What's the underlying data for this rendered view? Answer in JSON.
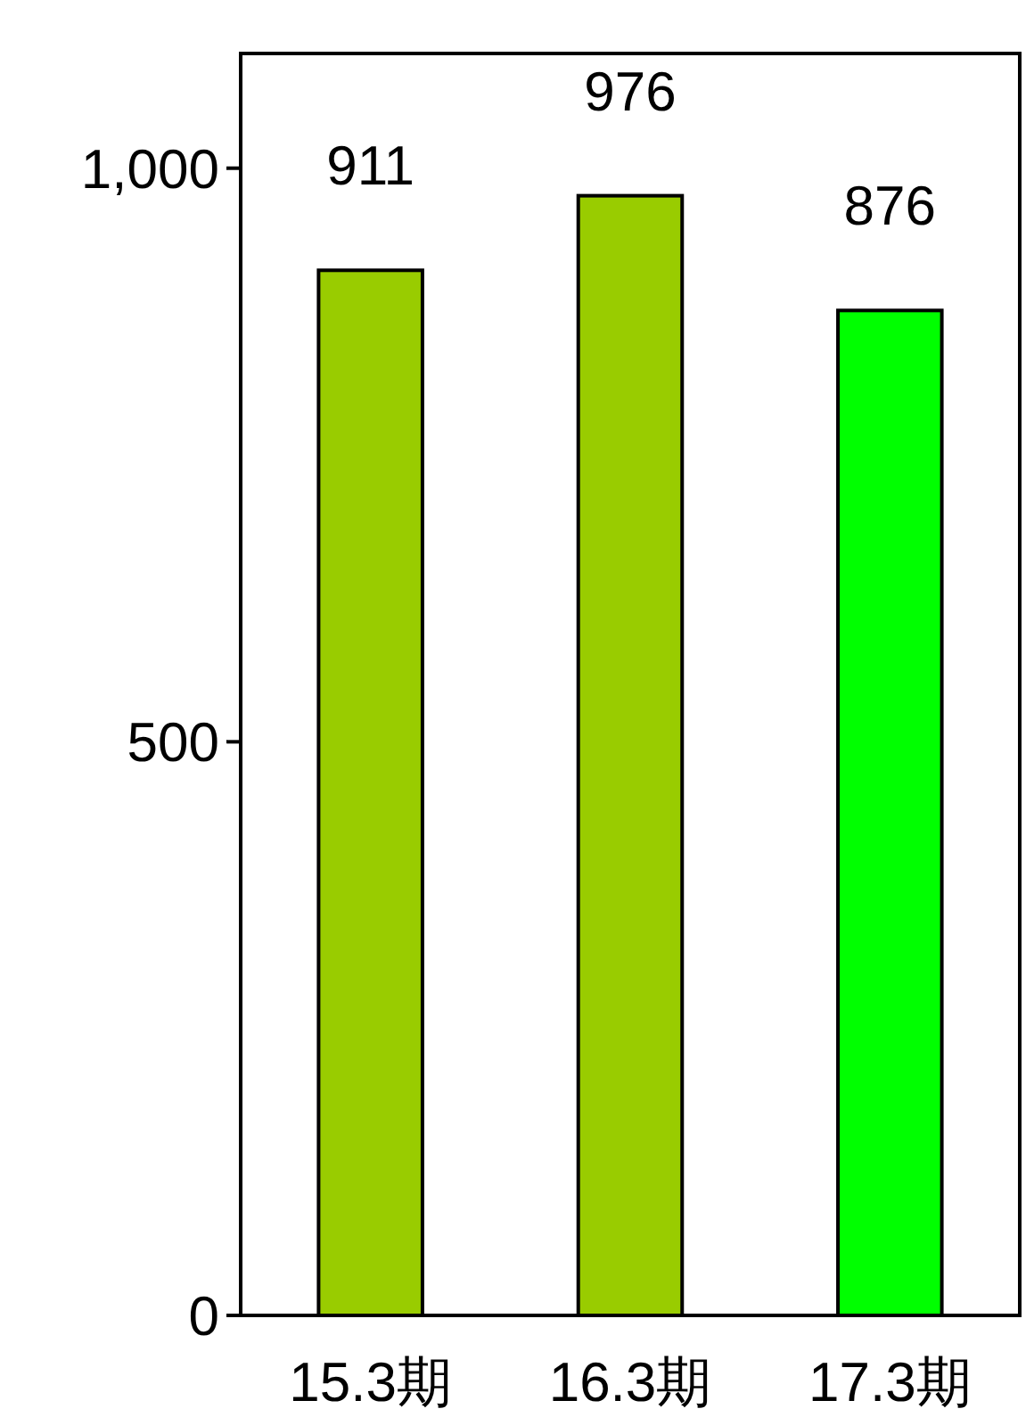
{
  "chart_data": {
    "type": "bar",
    "categories": [
      "15.3期",
      "16.3期",
      "17.3期"
    ],
    "values": [
      911,
      976,
      876
    ],
    "colors": [
      "#99cc00",
      "#99cc00",
      "#00ff00"
    ],
    "ylim": [
      0,
      1100
    ],
    "yticks": [
      0,
      500,
      {
        "value": 1000,
        "label": "1,000"
      }
    ],
    "data_labels": true
  }
}
